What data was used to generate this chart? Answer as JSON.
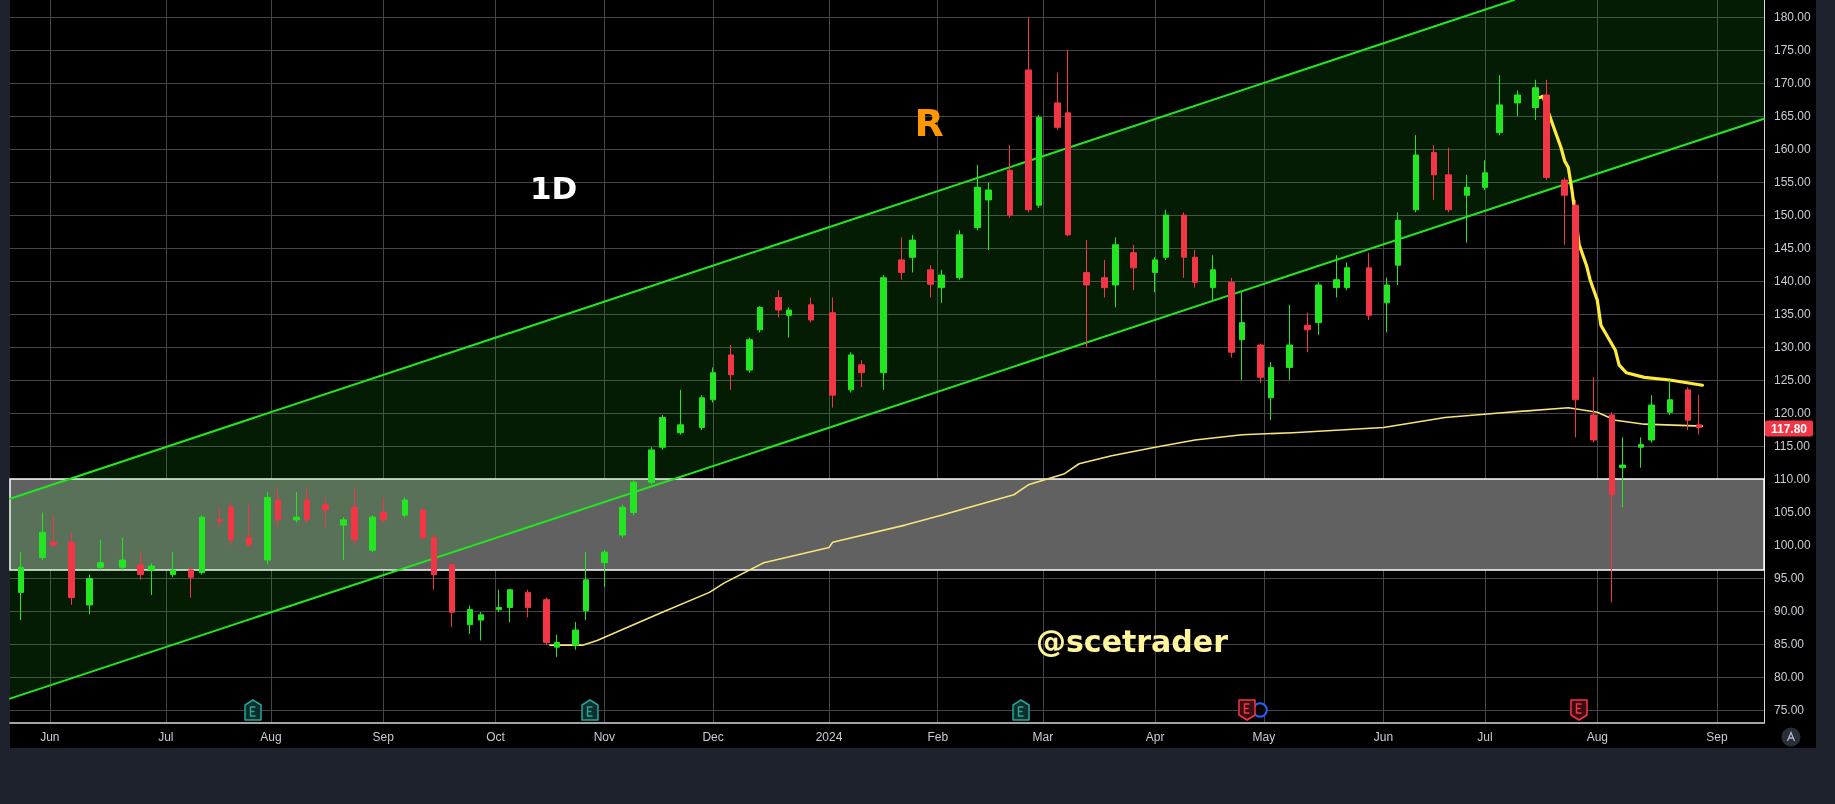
{
  "chart_data": {
    "type": "candlestick",
    "title": "1D",
    "xlim": [
      "2023-05-21",
      "2024-09-16"
    ],
    "xticks": [
      {
        "value": "2023-06-01",
        "label": "Jun"
      },
      {
        "value": "2023-07-03",
        "label": "Jul"
      },
      {
        "value": "2023-08-01",
        "label": "Aug"
      },
      {
        "value": "2023-09-01",
        "label": "Sep"
      },
      {
        "value": "2023-10-02",
        "label": "Oct"
      },
      {
        "value": "2023-11-01",
        "label": "Nov"
      },
      {
        "value": "2023-12-01",
        "label": "Dec"
      },
      {
        "value": "2024-01-02",
        "label": "2024"
      },
      {
        "value": "2024-02-01",
        "label": "Feb"
      },
      {
        "value": "2024-03-01",
        "label": "Mar"
      },
      {
        "value": "2024-04-01",
        "label": "Apr"
      },
      {
        "value": "2024-05-01",
        "label": "May"
      },
      {
        "value": "2024-06-03",
        "label": "Jun"
      },
      {
        "value": "2024-07-01",
        "label": "Jul"
      },
      {
        "value": "2024-08-01",
        "label": "Aug"
      },
      {
        "value": "2024-09-03",
        "label": "Sep"
      }
    ],
    "ylim": [
      73.0,
      182.6
    ],
    "yticks": [
      {
        "value": 75,
        "label": "75.00"
      },
      {
        "value": 80,
        "label": "80.00"
      },
      {
        "value": 85,
        "label": "85.00"
      },
      {
        "value": 90,
        "label": "90.00"
      },
      {
        "value": 95,
        "label": "95.00"
      },
      {
        "value": 100,
        "label": "100.00"
      },
      {
        "value": 105,
        "label": "105.00"
      },
      {
        "value": 110,
        "label": "110.00"
      },
      {
        "value": 115,
        "label": "115.00"
      },
      {
        "value": 120,
        "label": "120.00"
      },
      {
        "value": 125,
        "label": "125.00"
      },
      {
        "value": 130,
        "label": "130.00"
      },
      {
        "value": 135,
        "label": "135.00"
      },
      {
        "value": 140,
        "label": "140.00"
      },
      {
        "value": 145,
        "label": "145.00"
      },
      {
        "value": 150,
        "label": "150.00"
      },
      {
        "value": 155,
        "label": "155.00"
      },
      {
        "value": 160,
        "label": "160.00"
      },
      {
        "value": 165,
        "label": "165.00"
      },
      {
        "value": 170,
        "label": "170.00"
      },
      {
        "value": 175,
        "label": "175.00"
      },
      {
        "value": 180,
        "label": "180.00"
      }
    ],
    "grid": true,
    "marker": "none",
    "bands": [
      {
        "axis": "y",
        "from": 96.2,
        "to": 110.0,
        "color": "#616161"
      }
    ],
    "annotations": [
      "R",
      "@scetrader",
      "117.80"
    ],
    "series": [
      {
        "x": [
          "2023-05-24",
          "2023-05-30",
          "2023-06-02",
          "2023-06-07",
          "2023-06-12",
          "2023-06-15",
          "2023-06-21",
          "2023-06-26",
          "2023-06-29",
          "2023-07-05",
          "2023-07-10",
          "2023-07-13",
          "2023-07-18",
          "2023-07-21",
          "2023-07-26",
          "2023-07-31",
          "2023-08-03",
          "2023-08-08",
          "2023-08-11",
          "2023-08-16",
          "2023-08-21",
          "2023-08-24",
          "2023-08-29",
          "2023-09-01",
          "2023-09-07",
          "2023-09-12",
          "2023-09-15",
          "2023-09-20",
          "2023-09-25",
          "2023-09-28",
          "2023-10-03",
          "2023-10-06",
          "2023-10-11",
          "2023-10-16",
          "2023-10-19",
          "2023-10-24",
          "2023-10-27",
          "2023-11-01",
          "2023-11-06",
          "2023-11-09",
          "2023-11-14",
          "2023-11-17",
          "2023-11-22",
          "2023-11-28",
          "2023-12-01",
          "2023-12-06",
          "2023-12-11",
          "2023-12-14",
          "2023-12-19",
          "2023-12-22",
          "2023-12-28",
          "2024-01-03",
          "2024-01-08",
          "2024-01-11",
          "2024-01-17",
          "2024-01-22",
          "2024-01-25",
          "2024-01-30",
          "2024-02-02",
          "2024-02-07",
          "2024-02-12",
          "2024-02-15",
          "2024-02-21",
          "2024-02-26",
          "2024-02-29",
          "2024-03-05",
          "2024-03-08",
          "2024-03-13",
          "2024-03-18",
          "2024-03-21",
          "2024-03-26",
          "2024-04-01",
          "2024-04-04",
          "2024-04-09",
          "2024-04-12",
          "2024-04-17",
          "2024-04-22",
          "2024-04-25",
          "2024-04-30",
          "2024-05-03",
          "2024-05-08",
          "2024-05-13",
          "2024-05-16",
          "2024-05-21",
          "2024-05-24",
          "2024-05-30",
          "2024-06-04",
          "2024-06-07",
          "2024-06-12",
          "2024-06-17",
          "2024-06-21",
          "2024-06-26",
          "2024-07-01",
          "2024-07-05",
          "2024-07-10",
          "2024-07-15",
          "2024-07-18",
          "2024-07-23",
          "2024-07-26",
          "2024-07-31",
          "2024-08-05",
          "2024-08-08",
          "2024-08-13",
          "2024-08-16",
          "2024-08-21",
          "2024-08-26",
          "2024-08-29"
        ],
        "ohlc": [
          [
            92.8,
            98.9,
            88.6,
            96.6
          ],
          [
            98.1,
            104.9,
            97.7,
            101.9
          ],
          [
            100.4,
            104.5,
            99.6,
            100.0
          ],
          [
            100.4,
            101.9,
            90.9,
            92.0
          ],
          [
            90.9,
            95.5,
            89.5,
            94.9
          ],
          [
            96.6,
            100.8,
            96.2,
            97.3
          ],
          [
            96.6,
            101.1,
            96.2,
            97.7
          ],
          [
            97.0,
            98.9,
            94.7,
            95.5
          ],
          [
            96.2,
            97.2,
            92.4,
            96.8
          ],
          [
            95.5,
            98.9,
            95.1,
            96.2
          ],
          [
            96.2,
            96.6,
            92.0,
            95.1
          ],
          [
            95.8,
            104.5,
            95.5,
            104.2
          ],
          [
            103.8,
            105.7,
            102.7,
            103.6
          ],
          [
            105.7,
            106.4,
            100.0,
            100.8
          ],
          [
            101.1,
            106.1,
            99.6,
            100.0
          ],
          [
            97.7,
            108.0,
            97.0,
            107.2
          ],
          [
            106.8,
            108.7,
            102.7,
            103.8
          ],
          [
            103.8,
            108.0,
            103.4,
            104.2
          ],
          [
            106.8,
            108.7,
            103.4,
            103.8
          ],
          [
            106.1,
            107.2,
            102.7,
            105.3
          ],
          [
            103.0,
            104.2,
            97.7,
            103.8
          ],
          [
            105.7,
            108.7,
            100.0,
            100.8
          ],
          [
            99.2,
            104.5,
            98.9,
            104.2
          ],
          [
            104.9,
            107.2,
            103.4,
            103.8
          ],
          [
            104.5,
            107.2,
            104.2,
            106.8
          ],
          [
            105.3,
            105.7,
            100.8,
            101.1
          ],
          [
            101.1,
            101.5,
            93.2,
            95.5
          ],
          [
            97.0,
            97.1,
            87.5,
            89.8
          ],
          [
            87.9,
            90.8,
            86.5,
            90.2
          ],
          [
            88.6,
            89.8,
            85.5,
            89.4
          ],
          [
            90.2,
            93.2,
            89.8,
            90.5
          ],
          [
            90.5,
            93.3,
            88.3,
            93.2
          ],
          [
            92.8,
            93.2,
            89.0,
            90.5
          ],
          [
            91.7,
            92.0,
            84.8,
            85.2
          ],
          [
            84.5,
            86.4,
            83.0,
            85.2
          ],
          [
            84.8,
            88.3,
            84.1,
            87.1
          ],
          [
            90.0,
            98.9,
            88.6,
            94.7
          ],
          [
            97.3,
            99.2,
            93.6,
            98.9
          ],
          [
            101.5,
            106.1,
            101.1,
            105.7
          ],
          [
            104.9,
            109.8,
            104.5,
            109.5
          ],
          [
            109.5,
            114.8,
            109.1,
            114.4
          ],
          [
            114.8,
            119.7,
            114.4,
            119.3
          ],
          [
            117.0,
            123.5,
            116.7,
            118.2
          ],
          [
            117.8,
            122.7,
            117.4,
            122.3
          ],
          [
            122.0,
            126.9,
            121.6,
            126.1
          ],
          [
            128.8,
            130.3,
            123.5,
            125.8
          ],
          [
            126.5,
            131.4,
            126.1,
            131.1
          ],
          [
            132.6,
            136.2,
            132.2,
            136.0
          ],
          [
            137.5,
            138.6,
            134.5,
            135.6
          ],
          [
            134.8,
            136.0,
            131.4,
            135.6
          ],
          [
            136.4,
            137.5,
            133.7,
            134.1
          ],
          [
            135.2,
            137.5,
            120.8,
            122.7
          ],
          [
            123.5,
            129.2,
            123.1,
            128.8
          ],
          [
            127.3,
            128.0,
            123.9,
            126.1
          ],
          [
            126.1,
            140.9,
            123.5,
            140.5
          ],
          [
            143.2,
            146.6,
            140.2,
            141.3
          ],
          [
            143.6,
            147.0,
            141.3,
            146.2
          ],
          [
            141.7,
            142.4,
            137.5,
            139.5
          ],
          [
            139.0,
            141.7,
            136.7,
            140.9
          ],
          [
            140.5,
            147.7,
            140.2,
            147.0
          ],
          [
            148.1,
            157.6,
            147.7,
            154.2
          ],
          [
            152.3,
            154.9,
            144.7,
            153.8
          ],
          [
            156.8,
            160.6,
            149.6,
            150.0
          ],
          [
            172.0,
            179.9,
            150.4,
            150.8
          ],
          [
            151.5,
            165.2,
            151.1,
            164.8
          ],
          [
            167.0,
            171.6,
            162.9,
            163.3
          ],
          [
            165.5,
            175.0,
            146.8,
            147.0
          ],
          [
            141.3,
            146.2,
            129.9,
            139.4
          ],
          [
            140.5,
            143.2,
            137.5,
            139.0
          ],
          [
            139.4,
            146.6,
            136.0,
            145.5
          ],
          [
            144.3,
            145.5,
            138.6,
            142.0
          ],
          [
            141.3,
            143.6,
            138.3,
            143.2
          ],
          [
            143.6,
            150.8,
            143.2,
            150.0
          ],
          [
            150.0,
            150.4,
            140.5,
            143.6
          ],
          [
            143.6,
            144.7,
            139.0,
            139.8
          ],
          [
            139.0,
            143.9,
            137.1,
            141.7
          ],
          [
            139.8,
            140.5,
            128.4,
            129.2
          ],
          [
            131.1,
            138.3,
            125.0,
            133.7
          ],
          [
            130.3,
            130.5,
            124.6,
            125.4
          ],
          [
            122.3,
            127.7,
            118.9,
            126.9
          ],
          [
            126.9,
            136.4,
            125.0,
            130.3
          ],
          [
            133.3,
            135.2,
            129.2,
            132.6
          ],
          [
            133.7,
            139.8,
            131.8,
            139.4
          ],
          [
            139.0,
            143.9,
            137.5,
            140.2
          ],
          [
            139.0,
            142.8,
            138.6,
            142.0
          ],
          [
            142.0,
            144.3,
            134.1,
            134.8
          ],
          [
            136.7,
            140.5,
            132.2,
            139.4
          ],
          [
            142.4,
            150.4,
            139.4,
            149.2
          ],
          [
            150.8,
            162.1,
            150.4,
            159.1
          ],
          [
            159.5,
            160.6,
            152.3,
            156.1
          ],
          [
            156.1,
            160.2,
            150.4,
            150.8
          ],
          [
            153.0,
            156.1,
            145.8,
            154.2
          ],
          [
            154.2,
            158.3,
            153.8,
            156.4
          ],
          [
            162.5,
            171.2,
            162.1,
            166.7
          ],
          [
            167.0,
            168.9,
            165.0,
            168.2
          ],
          [
            166.3,
            170.5,
            164.4,
            169.3
          ],
          [
            168.2,
            170.5,
            155.3,
            155.7
          ],
          [
            155.3,
            155.7,
            145.5,
            153.0
          ],
          [
            151.5,
            152.3,
            116.3,
            122.0
          ],
          [
            119.7,
            125.4,
            115.5,
            115.9
          ],
          [
            119.7,
            120.1,
            91.3,
            107.6
          ],
          [
            111.7,
            116.3,
            105.7,
            112.1
          ],
          [
            114.8,
            116.3,
            111.7,
            115.2
          ],
          [
            115.9,
            122.7,
            115.5,
            121.2
          ],
          [
            120.1,
            125.0,
            119.7,
            122.0
          ],
          [
            123.5,
            123.9,
            117.4,
            118.9
          ],
          [
            118.2,
            122.7,
            116.7,
            117.8
          ]
        ],
        "colors": [
          "#22e622",
          "#22e622",
          "#f23645",
          "#f23645",
          "#22e622",
          "#22e622",
          "#22e622",
          "#f23645",
          "#22e622",
          "#22e622",
          "#f23645",
          "#22e622",
          "#f23645",
          "#f23645",
          "#f23645",
          "#22e622",
          "#f23645",
          "#22e622",
          "#f23645",
          "#f23645",
          "#22e622",
          "#f23645",
          "#22e622",
          "#f23645",
          "#22e622",
          "#f23645",
          "#f23645",
          "#f23645",
          "#22e622",
          "#22e622",
          "#22e622",
          "#22e622",
          "#f23645",
          "#f23645",
          "#22e622",
          "#22e622",
          "#22e622",
          "#22e622",
          "#22e622",
          "#22e622",
          "#22e622",
          "#22e622",
          "#22e622",
          "#22e622",
          "#22e622",
          "#f23645",
          "#22e622",
          "#22e622",
          "#f23645",
          "#22e622",
          "#f23645",
          "#f23645",
          "#22e622",
          "#f23645",
          "#22e622",
          "#f23645",
          "#22e622",
          "#f23645",
          "#22e622",
          "#22e622",
          "#22e622",
          "#22e622",
          "#f23645",
          "#f23645",
          "#22e622",
          "#f23645",
          "#f23645",
          "#f23645",
          "#f23645",
          "#22e622",
          "#f23645",
          "#22e622",
          "#22e622",
          "#f23645",
          "#f23645",
          "#22e622",
          "#f23645",
          "#22e622",
          "#f23645",
          "#22e622",
          "#22e622",
          "#f23645",
          "#22e622",
          "#22e622",
          "#22e622",
          "#f23645",
          "#22e622",
          "#22e622",
          "#22e622",
          "#f23645",
          "#f23645",
          "#22e622",
          "#22e622",
          "#22e622",
          "#22e622",
          "#22e622",
          "#f23645",
          "#f23645",
          "#f23645",
          "#f23645",
          "#f23645",
          "#22e622",
          "#22e622",
          "#22e622",
          "#22e622",
          "#f23645",
          "#f23645"
        ]
      },
      {
        "type": "line",
        "color": "#22e622",
        "x": [
          "2023-05-21",
          "2024-07-09",
          "2024-09-16"
        ],
        "values": [
          76.7,
          152.1,
          164.6
        ],
        "lower": [
          76.7,
          152.1,
          164.6
        ],
        "upper": [
          107.0,
          182.6,
          182.6
        ]
      },
      {
        "type": "line",
        "color": "#22e622",
        "x": [
          "2023-05-21",
          "2024-07-09"
        ],
        "values": [
          107.0,
          182.6
        ]
      },
      {
        "type": "line",
        "color": "#f7e47c",
        "x": [
          "2023-10-17",
          "2023-10-26",
          "2023-10-30",
          "2023-11-17",
          "2023-11-30",
          "2023-12-04",
          "2023-12-15",
          "2024-01-02",
          "2024-01-03",
          "2024-01-23",
          "2024-02-02",
          "2024-02-22",
          "2024-02-26",
          "2024-03-07",
          "2024-03-11",
          "2024-03-20",
          "2024-04-01",
          "2024-04-12",
          "2024-04-25",
          "2024-05-09",
          "2024-06-03",
          "2024-06-20",
          "2024-07-05",
          "2024-07-24",
          "2024-08-01",
          "2024-08-06",
          "2024-08-14",
          "2024-08-30"
        ],
        "values": [
          84.8,
          84.8,
          85.5,
          89.8,
          92.8,
          94.2,
          97.3,
          99.6,
          100.4,
          103.0,
          104.5,
          107.6,
          109.1,
          110.8,
          112.3,
          113.5,
          114.8,
          115.9,
          116.7,
          117.0,
          117.8,
          119.3,
          120.0,
          120.8,
          120.1,
          118.9,
          118.3,
          118.0
        ]
      },
      {
        "type": "line",
        "color": "#ffeb3b",
        "x": [
          "2024-07-16",
          "2024-07-17",
          "2024-07-19",
          "2024-07-22",
          "2024-07-23",
          "2024-07-24",
          "2024-07-25",
          "2024-07-27",
          "2024-07-29",
          "2024-07-30",
          "2024-08-01",
          "2024-08-02",
          "2024-08-06",
          "2024-08-07",
          "2024-08-09",
          "2024-08-14",
          "2024-08-21",
          "2024-08-30"
        ],
        "values": [
          167.8,
          168.0,
          164.8,
          160.2,
          158.2,
          157.2,
          153.8,
          145.5,
          142.4,
          140.2,
          137.1,
          133.3,
          129.5,
          127.3,
          126.1,
          125.4,
          125.0,
          124.2
        ]
      }
    ]
  }
}
